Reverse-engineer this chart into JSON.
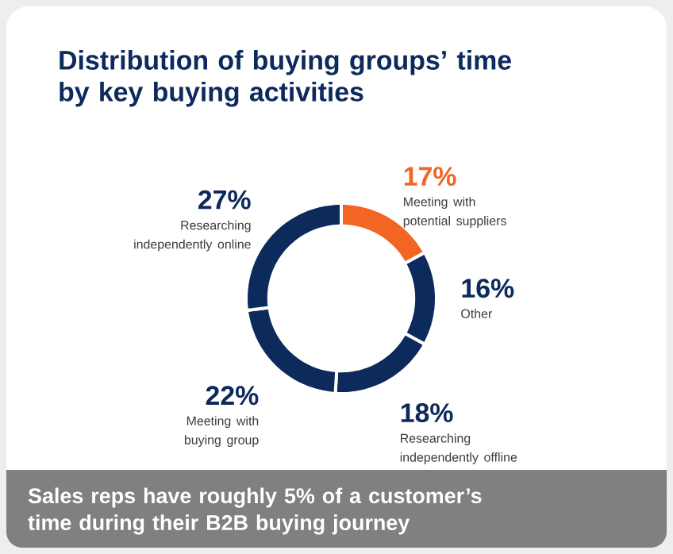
{
  "chart_data": {
    "type": "donut",
    "title": "Distribution of buying groups’ time by key buying activities",
    "categories": [
      "Meeting with potential suppliers",
      "Other",
      "Researching independently offline",
      "Meeting with buying group",
      "Researching independently online"
    ],
    "values": [
      17,
      16,
      18,
      22,
      27
    ],
    "value_labels": [
      "17%",
      "16%",
      "18%",
      "22%",
      "27%"
    ],
    "colors": [
      "#f26522",
      "#0d2a5c",
      "#0d2a5c",
      "#0d2a5c",
      "#0d2a5c"
    ],
    "annotations": [
      "Sales reps have roughly 5% of a customer’s time during their B2B buying journey"
    ]
  }
}
